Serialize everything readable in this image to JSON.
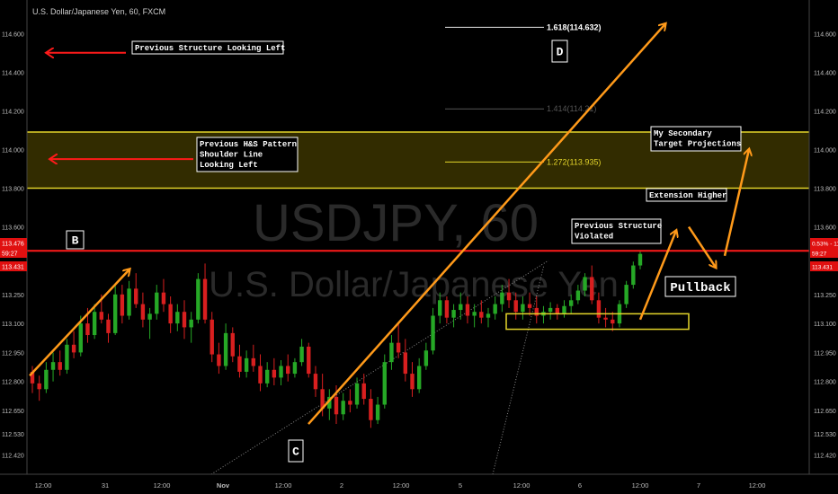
{
  "header": {
    "title": "U.S. Dollar/Japanese Yen, 60, FXCM"
  },
  "watermark": {
    "symbol": "USDJPY, 60",
    "name": "U.S. Dollar/Japanese Yen"
  },
  "colors": {
    "background": "#000000",
    "bull": "#26a826",
    "bear": "#d81f1f",
    "zone": "#e4d52a",
    "red_line": "#ff1a1a",
    "annotation_arrow": "#ff9a1a",
    "fib_line": "#9a9a9a",
    "axis_text": "#bdbdbd"
  },
  "chart_data": {
    "type": "candlestick",
    "title": "U.S. Dollar/Japanese Yen, 60, FXCM",
    "ylim": [
      112.32,
      114.75
    ],
    "y_ticks": [
      "114.600",
      "114.400",
      "114.200",
      "114.000",
      "113.800",
      "113.600",
      "113.476",
      "113.431",
      "113.250",
      "113.100",
      "112.950",
      "112.800",
      "112.650",
      "112.530",
      "112.420"
    ],
    "x_ticks": [
      "12:00",
      "31",
      "12:00",
      "Nov",
      "12:00",
      "2",
      "12:00",
      "5",
      "12:00",
      "6",
      "12:00",
      "7",
      "12:00"
    ],
    "right_badges": [
      {
        "label": "0.53% - 113.476",
        "value": 113.476
      },
      {
        "label": "59:27",
        "value": 113.455
      },
      {
        "label": "113.431",
        "value": 113.431
      }
    ],
    "left_badges": [
      {
        "label": "113.476",
        "value": 113.476
      },
      {
        "label": "59:27",
        "value": 113.455
      },
      {
        "label": "113.431",
        "value": 113.431
      }
    ],
    "horizontal_lines": [
      {
        "name": "resistance",
        "value": 113.476
      },
      {
        "name": "zone-top",
        "value": 114.09
      },
      {
        "name": "zone-bottom",
        "value": 113.8
      }
    ],
    "fib_levels": [
      {
        "label": "1.618(114.632)",
        "value": 114.632
      },
      {
        "label": "1.414(114.21)",
        "value": 114.21
      },
      {
        "label": "1.272(113.935)",
        "value": 113.935
      }
    ],
    "candles": [
      [
        112.85,
        112.88,
        112.74,
        112.79
      ],
      [
        112.79,
        112.83,
        112.7,
        112.76
      ],
      [
        112.76,
        112.9,
        112.74,
        112.86
      ],
      [
        112.86,
        112.95,
        112.8,
        112.9
      ],
      [
        112.9,
        112.96,
        112.83,
        112.86
      ],
      [
        112.86,
        113.02,
        112.84,
        112.99
      ],
      [
        112.99,
        113.06,
        112.92,
        112.95
      ],
      [
        112.95,
        113.14,
        112.93,
        113.1
      ],
      [
        113.1,
        113.18,
        113.0,
        113.04
      ],
      [
        113.04,
        113.2,
        113.02,
        113.16
      ],
      [
        113.16,
        113.25,
        113.1,
        113.12
      ],
      [
        113.12,
        113.15,
        113.0,
        113.05
      ],
      [
        113.05,
        113.3,
        113.04,
        113.25
      ],
      [
        113.25,
        113.3,
        113.1,
        113.14
      ],
      [
        113.14,
        113.32,
        113.12,
        113.28
      ],
      [
        113.28,
        113.36,
        113.18,
        113.2
      ],
      [
        113.2,
        113.26,
        113.08,
        113.12
      ],
      [
        113.12,
        113.18,
        113.02,
        113.15
      ],
      [
        113.15,
        113.3,
        113.12,
        113.26
      ],
      [
        113.26,
        113.33,
        113.16,
        113.2
      ],
      [
        113.2,
        113.24,
        113.05,
        113.1
      ],
      [
        113.1,
        113.2,
        113.06,
        113.16
      ],
      [
        113.16,
        113.22,
        113.02,
        113.08
      ],
      [
        113.08,
        113.16,
        113.0,
        113.12
      ],
      [
        113.12,
        113.36,
        113.1,
        113.33
      ],
      [
        113.33,
        113.41,
        113.1,
        113.12
      ],
      [
        113.12,
        113.16,
        112.9,
        112.94
      ],
      [
        112.94,
        113.0,
        112.84,
        112.88
      ],
      [
        112.88,
        113.1,
        112.86,
        113.05
      ],
      [
        113.05,
        113.08,
        112.9,
        112.93
      ],
      [
        112.93,
        112.99,
        112.82,
        112.85
      ],
      [
        112.85,
        112.96,
        112.82,
        112.92
      ],
      [
        112.92,
        112.99,
        112.85,
        112.88
      ],
      [
        112.88,
        112.94,
        112.75,
        112.79
      ],
      [
        112.79,
        112.9,
        112.77,
        112.86
      ],
      [
        112.86,
        112.92,
        112.78,
        112.82
      ],
      [
        112.82,
        112.91,
        112.78,
        112.88
      ],
      [
        112.88,
        112.94,
        112.8,
        112.84
      ],
      [
        112.84,
        112.92,
        112.82,
        112.9
      ],
      [
        112.9,
        113.02,
        112.88,
        112.98
      ],
      [
        112.98,
        113.0,
        112.82,
        112.84
      ],
      [
        112.84,
        112.88,
        112.72,
        112.76
      ],
      [
        112.76,
        112.84,
        112.62,
        112.66
      ],
      [
        112.66,
        112.76,
        112.6,
        112.72
      ],
      [
        112.72,
        112.78,
        112.58,
        112.63
      ],
      [
        112.63,
        112.74,
        112.6,
        112.7
      ],
      [
        112.7,
        112.76,
        112.64,
        112.68
      ],
      [
        112.68,
        112.82,
        112.66,
        112.79
      ],
      [
        112.79,
        112.84,
        112.68,
        112.71
      ],
      [
        112.71,
        112.76,
        112.56,
        112.6
      ],
      [
        112.6,
        112.72,
        112.58,
        112.68
      ],
      [
        112.68,
        112.94,
        112.66,
        112.9
      ],
      [
        112.9,
        113.04,
        112.86,
        113.0
      ],
      [
        113.0,
        113.1,
        112.92,
        112.95
      ],
      [
        112.95,
        113.02,
        112.8,
        112.84
      ],
      [
        112.84,
        112.9,
        112.72,
        112.76
      ],
      [
        112.76,
        112.92,
        112.74,
        112.88
      ],
      [
        112.88,
        113.0,
        112.86,
        112.96
      ],
      [
        112.96,
        113.18,
        112.94,
        113.14
      ],
      [
        113.14,
        113.26,
        113.1,
        113.22
      ],
      [
        113.22,
        113.24,
        113.1,
        113.13
      ],
      [
        113.13,
        113.2,
        113.08,
        113.17
      ],
      [
        113.17,
        113.26,
        113.12,
        113.2
      ],
      [
        113.2,
        113.24,
        113.1,
        113.14
      ],
      [
        113.14,
        113.2,
        113.08,
        113.16
      ],
      [
        113.16,
        113.22,
        113.1,
        113.13
      ],
      [
        113.13,
        113.18,
        113.08,
        113.15
      ],
      [
        113.15,
        113.24,
        113.12,
        113.2
      ],
      [
        113.2,
        113.3,
        113.16,
        113.26
      ],
      [
        113.26,
        113.33,
        113.18,
        113.22
      ],
      [
        113.22,
        113.26,
        113.12,
        113.16
      ],
      [
        113.16,
        113.24,
        113.12,
        113.2
      ],
      [
        113.2,
        113.26,
        113.14,
        113.18
      ],
      [
        113.18,
        113.24,
        113.1,
        113.14
      ],
      [
        113.14,
        113.19,
        113.1,
        113.16
      ],
      [
        113.16,
        113.21,
        113.12,
        113.18
      ],
      [
        113.18,
        113.2,
        113.12,
        113.15
      ],
      [
        113.15,
        113.22,
        113.13,
        113.19
      ],
      [
        113.19,
        113.25,
        113.15,
        113.22
      ],
      [
        113.22,
        113.3,
        113.2,
        113.27
      ],
      [
        113.27,
        113.36,
        113.24,
        113.34
      ],
      [
        113.34,
        113.4,
        113.2,
        113.22
      ],
      [
        113.22,
        113.26,
        113.1,
        113.13
      ],
      [
        113.13,
        113.18,
        113.08,
        113.12
      ],
      [
        113.12,
        113.16,
        113.06,
        113.1
      ],
      [
        113.1,
        113.22,
        113.08,
        113.2
      ],
      [
        113.2,
        113.32,
        113.18,
        113.3
      ],
      [
        113.3,
        113.42,
        113.28,
        113.4
      ],
      [
        113.4,
        113.48,
        113.38,
        113.46
      ]
    ],
    "annotations": [
      {
        "label": "Previous Structure Looking Left",
        "value": 114.5
      },
      {
        "label": "Previous H&S Pattern\nShoulder Line\nLooking Left",
        "value": 113.95
      },
      {
        "label": "My Secondary\nTarget Projections",
        "value": 114.02
      },
      {
        "label": "Extension Higher",
        "value": 113.72
      },
      {
        "label": "Previous Structure\nViolated",
        "value": 113.54
      },
      {
        "label": "Pullback",
        "value": 113.25
      },
      {
        "label": "B",
        "value": 113.5
      },
      {
        "label": "C",
        "value": 112.45
      },
      {
        "label": "D",
        "value": 114.45
      }
    ]
  }
}
